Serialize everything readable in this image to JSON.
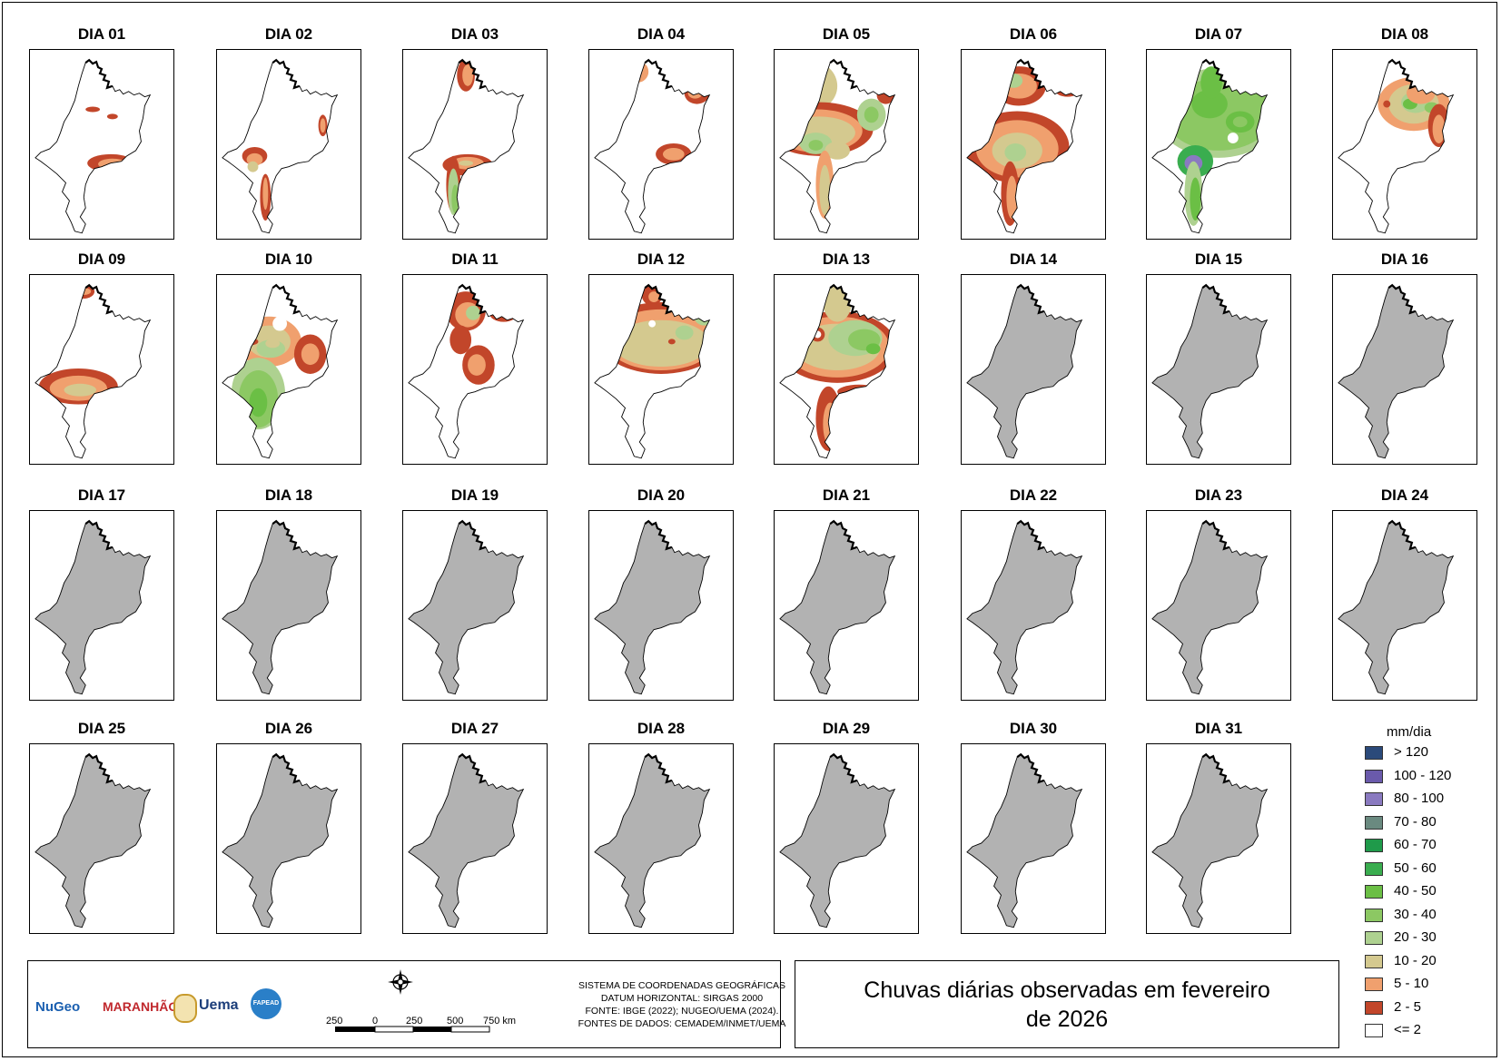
{
  "panels": [
    {
      "title": "DIA 01",
      "state": "data"
    },
    {
      "title": "DIA 02",
      "state": "data"
    },
    {
      "title": "DIA 03",
      "state": "data"
    },
    {
      "title": "DIA 04",
      "state": "data"
    },
    {
      "title": "DIA 05",
      "state": "data"
    },
    {
      "title": "DIA 06",
      "state": "data"
    },
    {
      "title": "DIA 07",
      "state": "data"
    },
    {
      "title": "DIA 08",
      "state": "data"
    },
    {
      "title": "DIA 09",
      "state": "data"
    },
    {
      "title": "DIA 10",
      "state": "data"
    },
    {
      "title": "DIA 11",
      "state": "data"
    },
    {
      "title": "DIA 12",
      "state": "data"
    },
    {
      "title": "DIA 13",
      "state": "data"
    },
    {
      "title": "DIA 14",
      "state": "nodata"
    },
    {
      "title": "DIA 15",
      "state": "nodata"
    },
    {
      "title": "DIA 16",
      "state": "nodata"
    },
    {
      "title": "DIA 17",
      "state": "nodata"
    },
    {
      "title": "DIA 18",
      "state": "nodata"
    },
    {
      "title": "DIA 19",
      "state": "nodata"
    },
    {
      "title": "DIA 20",
      "state": "nodata"
    },
    {
      "title": "DIA 21",
      "state": "nodata"
    },
    {
      "title": "DIA 22",
      "state": "nodata"
    },
    {
      "title": "DIA 23",
      "state": "nodata"
    },
    {
      "title": "DIA 24",
      "state": "nodata"
    },
    {
      "title": "DIA 25",
      "state": "nodata"
    },
    {
      "title": "DIA 26",
      "state": "nodata"
    },
    {
      "title": "DIA 27",
      "state": "nodata"
    },
    {
      "title": "DIA 28",
      "state": "nodata"
    },
    {
      "title": "DIA 29",
      "state": "nodata"
    },
    {
      "title": "DIA 30",
      "state": "nodata"
    },
    {
      "title": "DIA 31",
      "state": "nodata"
    }
  ],
  "legend": {
    "unit": "mm/dia",
    "classes": [
      {
        "label": "> 120",
        "color": "#2b4a7a"
      },
      {
        "label": "100 - 120",
        "color": "#6a5aab"
      },
      {
        "label": "80 - 100",
        "color": "#8a7ac0"
      },
      {
        "label": "70 - 80",
        "color": "#6a8a80"
      },
      {
        "label": "60 - 70",
        "color": "#1f9a4a"
      },
      {
        "label": "50 - 60",
        "color": "#3aad4f"
      },
      {
        "label": "40 - 50",
        "color": "#6bbf45"
      },
      {
        "label": "30 - 40",
        "color": "#8cc863"
      },
      {
        "label": "20 - 30",
        "color": "#aed190"
      },
      {
        "label": "10 - 20",
        "color": "#d4c98f"
      },
      {
        "label": "5 - 10",
        "color": "#f0a06e"
      },
      {
        "label": "2 - 5",
        "color": "#c2462a"
      },
      {
        "label": "<= 2",
        "color": "#ffffff"
      }
    ],
    "nodata_color": "#b2b2b2"
  },
  "title": "Chuvas diárias observadas em fevereiro de 2026",
  "info": {
    "crs_lines": [
      "SISTEMA DE COORDENADAS GEOGRÁFICAS",
      "DATUM HORIZONTAL: SIRGAS 2000",
      "FONTE: IBGE (2022); NUGEO/UEMA (2024).",
      "FONTES DE DADOS: CEMADEM/INMET/UEMA"
    ],
    "scale_labels": [
      "250",
      "0",
      "250",
      "500",
      "750 km"
    ],
    "logos": [
      "NuGeo",
      "MARANHÃO",
      "Uema",
      "FAPEAD"
    ]
  }
}
